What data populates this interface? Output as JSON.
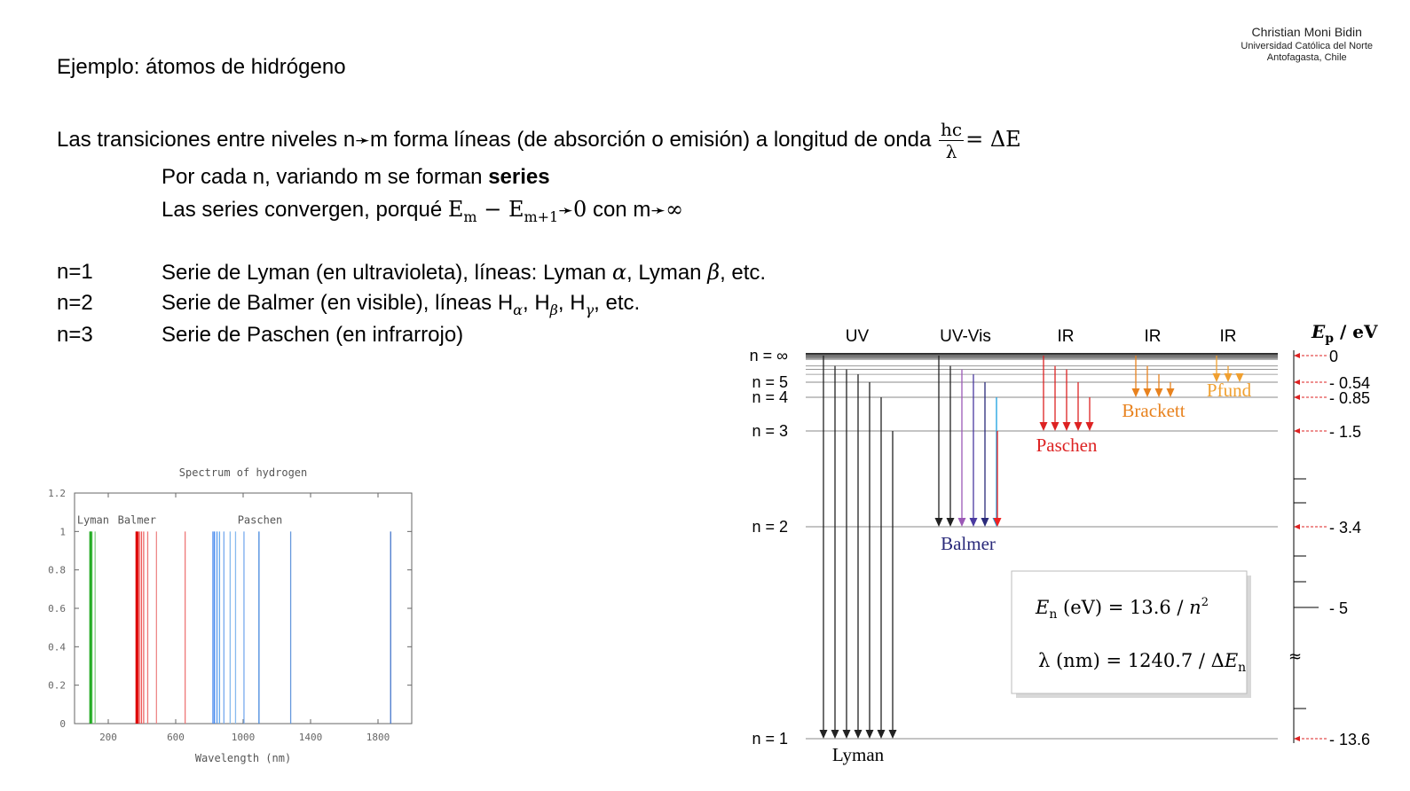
{
  "author": {
    "name": "Christian Moni Bidin",
    "university": "Universidad Católica del Norte",
    "location": "Antofagasta, Chile"
  },
  "slide": {
    "title": "Ejemplo: átomos de hidrógeno",
    "line1_text": "Las transiciones entre niveles n",
    "line1_m": "m forma líneas (de absorción o emisión) a longitud de onda ",
    "frac_num": "hc",
    "frac_den": "λ",
    "frac_rhs": "= ΔE",
    "line2_prefix": "Por cada n, variando m se forman ",
    "line2_bold": "series",
    "line3_prefix": "Las series convergen, porqué ",
    "line3_E": "E",
    "line3_sub_m": "m",
    "line3_minus": " − E",
    "line3_sub_m1": "m+1",
    "line3_zero": "0",
    "line3_con": " con m",
    "line3_inf": "∞",
    "arrow_glyph": "➛",
    "rows": [
      {
        "n": "n=1",
        "text_a": "Serie de Lyman (en ultravioleta), líneas: Lyman ",
        "g1": "α",
        "text_b": ", Lyman ",
        "g2": "β",
        "text_c": ", etc."
      },
      {
        "n": "n=2",
        "text_a": "Serie de Balmer (en visible), líneas H",
        "s1": "α",
        "sep1": ", H",
        "s2": "β",
        "sep2": ", H",
        "s3": "γ",
        "text_c": ", etc."
      },
      {
        "n": "n=3",
        "text_a": "Serie de Paschen (en infrarrojo)"
      }
    ]
  },
  "chart_data": {
    "type": "bar",
    "title": "Spectrum of hydrogen",
    "xlabel": "Wavelength (nm)",
    "ylabel": "",
    "xlim": [
      0,
      2000
    ],
    "ylim": [
      0,
      1.2
    ],
    "x_ticks": [
      200,
      600,
      1000,
      1400,
      1800
    ],
    "y_ticks": [
      0,
      0.2,
      0.4,
      0.6,
      0.8,
      1,
      1.2
    ],
    "series_labels": [
      {
        "name": "Lyman",
        "x": 110
      },
      {
        "name": "Balmer",
        "x": 370
      },
      {
        "name": "Paschen",
        "x": 1100
      }
    ],
    "lines": [
      {
        "x": 91,
        "value": 1,
        "color": "#22aa22"
      },
      {
        "x": 95,
        "value": 1,
        "color": "#22aa22"
      },
      {
        "x": 97,
        "value": 1,
        "color": "#22aa22"
      },
      {
        "x": 103,
        "value": 1,
        "color": "#44bb44"
      },
      {
        "x": 122,
        "value": 1,
        "color": "#88cc88"
      },
      {
        "x": 365,
        "value": 1,
        "color": "#dd0000"
      },
      {
        "x": 370,
        "value": 1,
        "color": "#dd0000"
      },
      {
        "x": 375,
        "value": 1,
        "color": "#dd0000"
      },
      {
        "x": 384,
        "value": 1,
        "color": "#ee3333"
      },
      {
        "x": 397,
        "value": 1,
        "color": "#ee5555"
      },
      {
        "x": 410,
        "value": 1,
        "color": "#ee6666"
      },
      {
        "x": 434,
        "value": 1,
        "color": "#ee7777"
      },
      {
        "x": 486,
        "value": 1,
        "color": "#ee8888"
      },
      {
        "x": 656,
        "value": 1,
        "color": "#ee7777"
      },
      {
        "x": 821,
        "value": 1,
        "color": "#4488ee"
      },
      {
        "x": 830,
        "value": 1,
        "color": "#4488ee"
      },
      {
        "x": 845,
        "value": 1,
        "color": "#5599ee"
      },
      {
        "x": 860,
        "value": 1,
        "color": "#66aaee"
      },
      {
        "x": 886,
        "value": 1,
        "color": "#77aaee"
      },
      {
        "x": 923,
        "value": 1,
        "color": "#88bbee"
      },
      {
        "x": 955,
        "value": 1,
        "color": "#88bbee"
      },
      {
        "x": 1005,
        "value": 1,
        "color": "#77aaee"
      },
      {
        "x": 1094,
        "value": 1,
        "color": "#4488dd"
      },
      {
        "x": 1282,
        "value": 1,
        "color": "#6699dd"
      },
      {
        "x": 1875,
        "value": 1,
        "color": "#4477cc"
      }
    ]
  },
  "diagram": {
    "headers": [
      {
        "label": "UV",
        "x": 966
      },
      {
        "label": "UV-Vis",
        "x": 1088
      },
      {
        "label": "IR",
        "x": 1201
      },
      {
        "label": "IR",
        "x": 1299
      },
      {
        "label": "IR",
        "x": 1384
      }
    ],
    "axis_label_E": "E",
    "axis_label_sub": "p",
    "axis_label_unit": " / eV",
    "levels": [
      {
        "n": "n = ∞",
        "energy": 0,
        "eV_label": "0"
      },
      {
        "n": "n = 5",
        "energy": -0.54,
        "eV_label": "- 0.54"
      },
      {
        "n": "n = 4",
        "energy": -0.85,
        "eV_label": "- 0.85"
      },
      {
        "n": "n = 3",
        "energy": -1.5,
        "eV_label": "- 1.5"
      },
      {
        "n": "n = 2",
        "energy": -3.4,
        "eV_label": "- 3.4"
      },
      {
        "n": "",
        "energy": -5,
        "eV_label": "- 5"
      },
      {
        "n": "n = 1",
        "energy": -13.6,
        "eV_label": "- 13.6"
      }
    ],
    "series": [
      {
        "name": "Lyman",
        "color": "#1a1a4a",
        "label_color": "#000000"
      },
      {
        "name": "Balmer",
        "color": "#2a2a7a",
        "label_color": "#2a2a7a"
      },
      {
        "name": "Paschen",
        "color": "#dd2222",
        "label_color": "#dd2222"
      },
      {
        "name": "Brackett",
        "color": "#e8821e",
        "label_color": "#e8821e"
      },
      {
        "name": "Pfund",
        "color": "#f0a030",
        "label_color": "#f0a030"
      }
    ],
    "formula1_E": "E",
    "formula1_sub": "n",
    "formula1_rest": " (eV) = 13.6 / ",
    "formula1_n": "n",
    "formula1_sup": "2",
    "formula2_lhs": "λ (nm) = 1240.7 / Δ",
    "formula2_E": "E",
    "formula2_sub": "n",
    "break_glyph": "≈"
  }
}
